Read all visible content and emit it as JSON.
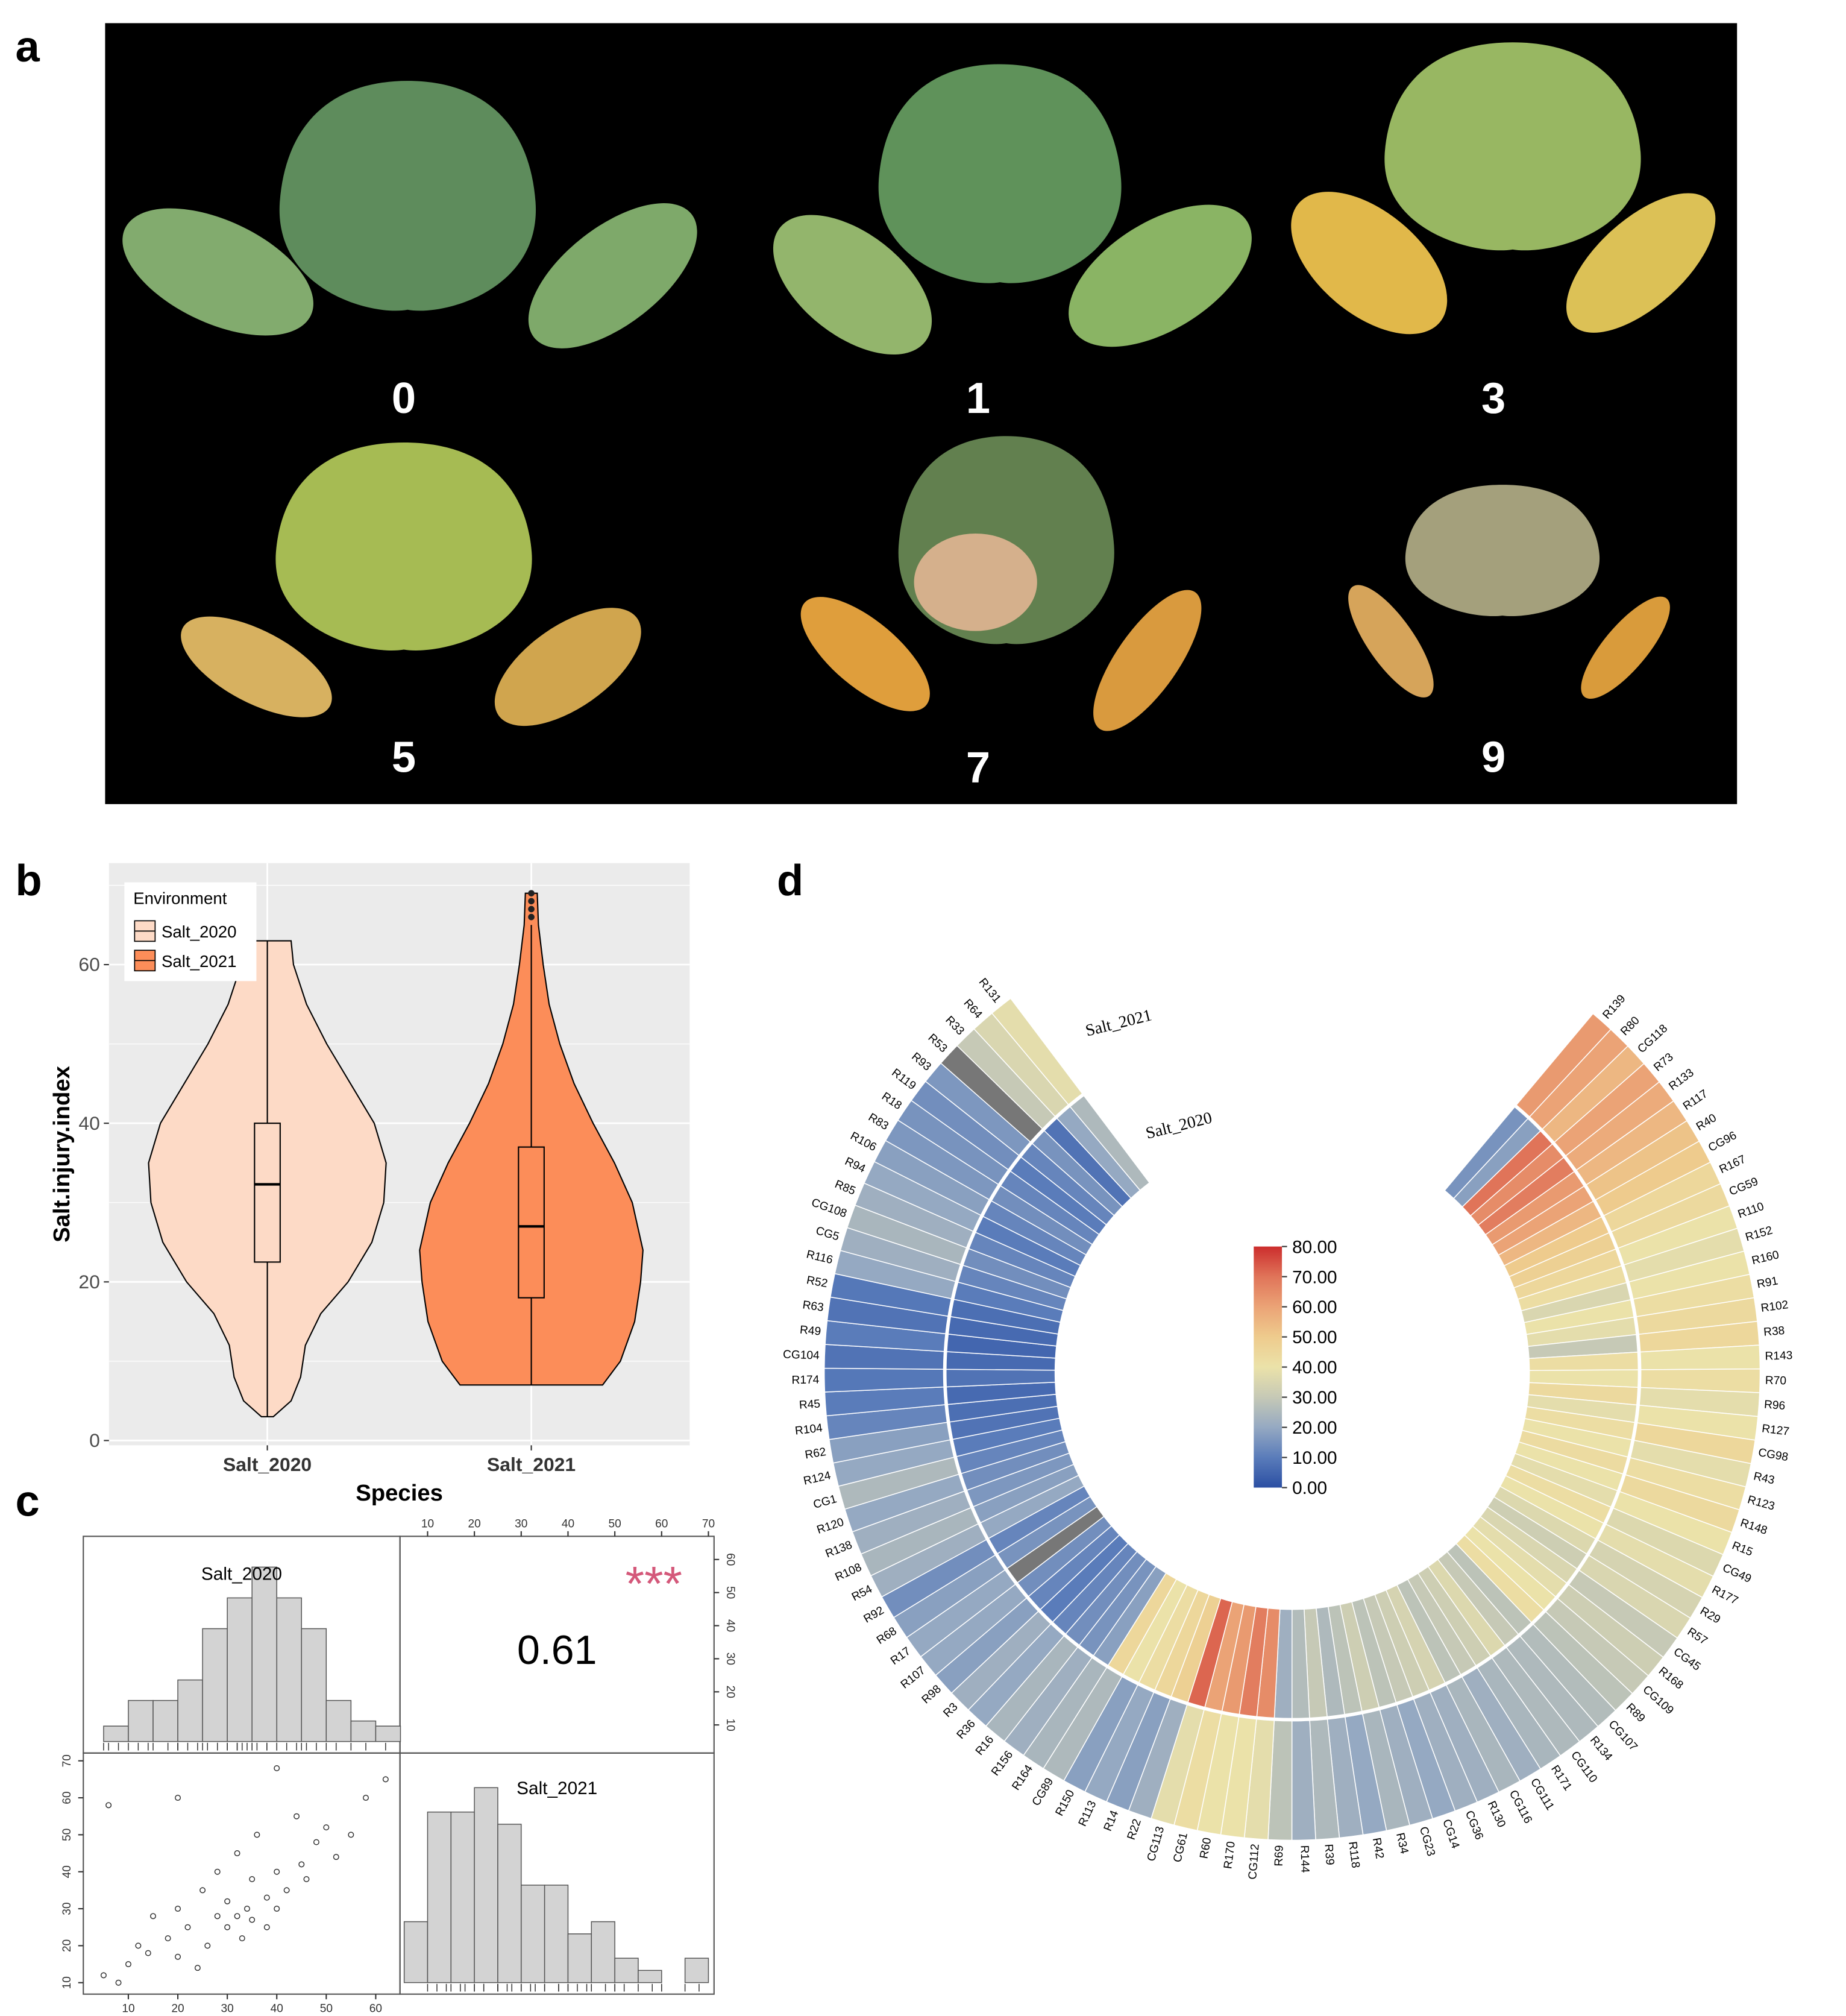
{
  "panel_labels": [
    "a",
    "b",
    "c",
    "d"
  ],
  "photo": {
    "grades": [
      0,
      1,
      3,
      5,
      7,
      9
    ]
  },
  "chart_data": [
    {
      "type": "violin",
      "x_label": "Species",
      "y_label": "Salt.injury.index",
      "legend_title": "Environment",
      "legend": "top-left",
      "grid": true,
      "categories": [
        "Salt_2020",
        "Salt_2021"
      ],
      "ylim": [
        -0.6,
        72.8
      ],
      "yticks": [
        0,
        20,
        40,
        60
      ],
      "minor_yticks": [
        10,
        30,
        50,
        70
      ],
      "series": [
        {
          "name": "Salt_2020",
          "color": "#fddac6",
          "min": 3,
          "q1": 22.5,
          "median": 32.3,
          "q3": 40,
          "max": 63,
          "outliers": [],
          "density_y": [
            3,
            5,
            8,
            12,
            16,
            20,
            25,
            30,
            35,
            40,
            45,
            50,
            55,
            60,
            63
          ],
          "density_width": [
            0.05,
            0.2,
            0.28,
            0.32,
            0.45,
            0.68,
            0.88,
            0.98,
            1.0,
            0.9,
            0.7,
            0.5,
            0.33,
            0.22,
            0.2
          ]
        },
        {
          "name": "Salt_2021",
          "color": "#fc8d59",
          "min": 7,
          "q1": 18,
          "median": 27,
          "q3": 37,
          "max": 65,
          "outliers": [
            66,
            67,
            68,
            69
          ],
          "density_y": [
            7,
            10,
            15,
            20,
            24,
            30,
            35,
            40,
            45,
            50,
            55,
            60,
            65,
            69
          ],
          "density_width": [
            0.6,
            0.75,
            0.87,
            0.92,
            0.94,
            0.85,
            0.7,
            0.52,
            0.36,
            0.24,
            0.15,
            0.1,
            0.06,
            0.05
          ]
        }
      ]
    },
    {
      "type": "pairs",
      "variables": [
        "Salt_2020",
        "Salt_2021"
      ],
      "correlation": 0.61,
      "significance": "***",
      "xlim": [
        0.9,
        64.9
      ],
      "xticks": [
        10,
        20,
        30,
        40,
        50,
        60
      ],
      "ylim": [
        6.9,
        72.1
      ],
      "yticks": [
        10,
        20,
        30,
        40,
        50,
        60,
        70
      ],
      "x2lim": [
        4.1,
        71.2
      ],
      "x2ticks": [
        10,
        20,
        30,
        40,
        50,
        60,
        70
      ],
      "y2lim": [
        1.5,
        67
      ],
      "y2ticks": [
        10,
        20,
        30,
        40,
        50,
        60
      ],
      "histograms": [
        {
          "bins": [
            5,
            10,
            15,
            20,
            25,
            30,
            35,
            40,
            45,
            50,
            55,
            60,
            65
          ],
          "counts": [
            3,
            8,
            8,
            12,
            22,
            28,
            34,
            28,
            22,
            8,
            4,
            3
          ],
          "ylim": [
            0,
            38
          ]
        },
        {
          "bins": [
            5,
            10,
            15,
            20,
            25,
            30,
            35,
            40,
            45,
            50,
            55,
            60,
            65,
            70
          ],
          "counts": [
            5,
            14,
            14,
            16,
            13,
            8,
            8,
            4,
            5,
            2,
            1,
            0,
            2
          ],
          "ylim": [
            0,
            18
          ]
        }
      ],
      "scatter": {
        "x": [
          5,
          8,
          10,
          12,
          14,
          15,
          18,
          20,
          20,
          22,
          24,
          25,
          26,
          28,
          28,
          30,
          30,
          32,
          32,
          33,
          34,
          35,
          35,
          36,
          38,
          38,
          40,
          40,
          42,
          44,
          45,
          46,
          48,
          50,
          52,
          55,
          58,
          62,
          6,
          40,
          20
        ],
        "y": [
          12,
          10,
          15,
          20,
          18,
          28,
          22,
          17,
          30,
          25,
          14,
          35,
          20,
          28,
          40,
          25,
          32,
          28,
          45,
          22,
          30,
          38,
          27,
          50,
          33,
          25,
          40,
          30,
          35,
          55,
          42,
          38,
          48,
          52,
          44,
          50,
          60,
          65,
          58,
          68,
          60
        ]
      }
    },
    {
      "type": "circular-heatmap",
      "clim": [
        0,
        80
      ],
      "colors": [
        "#2b4fa3",
        "#5a7cba",
        "#95a9c2",
        "#c6c9b6",
        "#ebe2a9",
        "#eecb8d",
        "#eba376",
        "#e07459",
        "#cc2d2d"
      ],
      "colorbar_ticks": [
        {
          "value": 0,
          "label": "0.00"
        },
        {
          "value": 10,
          "label": "10.00"
        },
        {
          "value": 20,
          "label": "20.00"
        },
        {
          "value": 30,
          "label": "30.00"
        },
        {
          "value": 40,
          "label": "40.00"
        },
        {
          "value": 50,
          "label": "50.00"
        },
        {
          "value": 60,
          "label": "60.00"
        },
        {
          "value": 70,
          "label": "70.00"
        },
        {
          "value": 80,
          "label": "80.00"
        }
      ],
      "categories": [
        "R139",
        "R80",
        "CG118",
        "R73",
        "R133",
        "R117",
        "R40",
        "CG96",
        "R167",
        "CG59",
        "R110",
        "R152",
        "R160",
        "R91",
        "R102",
        "R38",
        "R143",
        "R70",
        "R96",
        "R127",
        "CG98",
        "R43",
        "R123",
        "R148",
        "R15",
        "CG49",
        "R177",
        "R29",
        "R57",
        "CG45",
        "R168",
        "CG109",
        "R89",
        "CG107",
        "R134",
        "CG110",
        "R171",
        "CG111",
        "CG116",
        "R130",
        "CG36",
        "CG14",
        "CG23",
        "R34",
        "R42",
        "R118",
        "R39",
        "R144",
        "R69",
        "CG112",
        "R170",
        "R60",
        "CG61",
        "CG113",
        "R22",
        "R14",
        "R113",
        "R150",
        "CG89",
        "R164",
        "R156",
        "R16",
        "R36",
        "R3",
        "R98",
        "R107",
        "R17",
        "R68",
        "R92",
        "R54",
        "R108",
        "R138",
        "R120",
        "CG1",
        "R124",
        "R62",
        "R104",
        "R45",
        "R174",
        "CG104",
        "R49",
        "R63",
        "R52",
        "R116",
        "CG5",
        "CG108",
        "R85",
        "R94",
        "R106",
        "R83",
        "R18",
        "R119",
        "R93",
        "R53",
        "R33",
        "R64",
        "R131"
      ],
      "series": [
        {
          "name": "Salt_2020",
          "values": [
            15,
            18,
            70,
            65,
            68,
            62,
            60,
            55,
            50,
            48,
            45,
            42,
            35,
            40,
            38,
            30,
            42,
            40,
            44,
            38,
            42,
            40,
            43,
            40,
            38,
            42,
            40,
            36,
            32,
            35,
            38,
            40,
            42,
            28,
            30,
            36,
            32,
            30,
            28,
            34,
            32,
            30,
            28,
            32,
            28,
            25,
            30,
            26,
            22,
            65,
            68,
            62,
            60,
            72,
            48,
            45,
            42,
            40,
            45,
            18,
            15,
            14,
            12,
            10,
            12,
            14,
            null,
            15,
            12,
            20,
            18,
            16,
            14,
            12,
            10,
            8,
            7,
            6,
            8,
            6,
            5,
            6,
            7,
            10,
            12,
            14,
            12,
            10,
            12,
            14,
            12,
            10,
            12,
            15,
            8,
            20,
            25
          ]
        },
        {
          "name": "Salt_2021",
          "values": [
            62,
            60,
            55,
            60,
            58,
            55,
            52,
            50,
            45,
            44,
            40,
            38,
            40,
            42,
            44,
            45,
            40,
            42,
            38,
            40,
            45,
            38,
            42,
            44,
            40,
            36,
            38,
            34,
            35,
            30,
            32,
            30,
            28,
            26,
            25,
            25,
            24,
            22,
            24,
            22,
            22,
            20,
            22,
            24,
            20,
            22,
            25,
            22,
            28,
            38,
            40,
            40,
            42,
            38,
            22,
            18,
            20,
            18,
            25,
            24,
            22,
            24,
            20,
            22,
            18,
            20,
            20,
            18,
            14,
            22,
            24,
            22,
            20,
            25,
            20,
            18,
            12,
            10,
            9,
            8,
            10,
            8,
            9,
            20,
            22,
            24,
            22,
            20,
            18,
            16,
            15,
            14,
            16,
            null,
            30,
            35,
            38
          ]
        }
      ]
    }
  ]
}
